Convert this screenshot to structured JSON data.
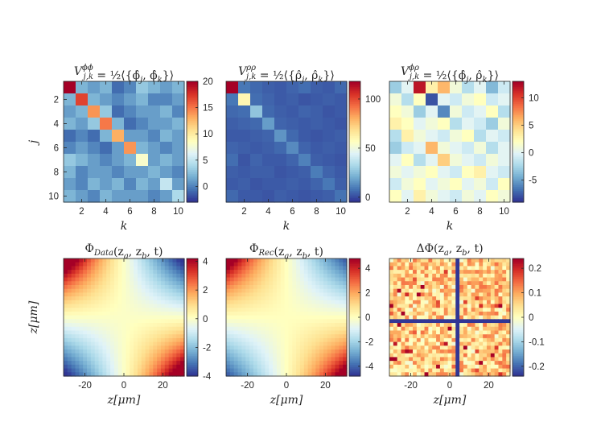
{
  "colormap": [
    "#313695",
    "#4575b4",
    "#74add1",
    "#abd9e9",
    "#e0f3f8",
    "#ffffbf",
    "#fee090",
    "#fdae61",
    "#f46d43",
    "#d73027",
    "#a50026"
  ],
  "chart_data": [
    {
      "type": "heatmap",
      "id": "v-phiphi",
      "title_main": "V",
      "title_sup": "ϕϕ",
      "title_sub": "j,k",
      "title_rest": " = ½⟨{ϕ̂",
      "title_rest_sub1": "j",
      "title_rest2": ", ϕ̂",
      "title_rest_sub2": "k",
      "title_rest3": "}⟩",
      "xlabel": "k",
      "ylabel": "j",
      "x_ticks": [
        2,
        4,
        6,
        8,
        10
      ],
      "y_ticks": [
        2,
        4,
        6,
        8,
        10
      ],
      "x_range": [
        0.5,
        10.5
      ],
      "y_range": [
        0.5,
        10.5
      ],
      "color_range": [
        -3,
        20
      ],
      "colorbar_ticks": [
        0,
        5,
        10,
        15,
        20
      ],
      "colorbar_tick_labels": [
        "0",
        "5",
        "10",
        "15",
        "20"
      ],
      "matrix": [
        [
          20,
          2,
          1,
          2,
          -1,
          0,
          3,
          2,
          1,
          2
        ],
        [
          2,
          17,
          2,
          1,
          0,
          1,
          2,
          0,
          0,
          1
        ],
        [
          1,
          2,
          14,
          3,
          -1,
          0,
          1,
          1,
          2,
          0
        ],
        [
          2,
          1,
          3,
          15,
          2,
          -1,
          0,
          1,
          1,
          2
        ],
        [
          -1,
          0,
          -1,
          2,
          13,
          1,
          1,
          0,
          2,
          1
        ],
        [
          0,
          1,
          0,
          -1,
          1,
          14,
          2,
          1,
          0,
          1
        ],
        [
          3,
          2,
          1,
          0,
          1,
          2,
          8,
          1,
          2,
          1
        ],
        [
          2,
          0,
          1,
          1,
          0,
          1,
          1,
          2,
          1,
          0
        ],
        [
          1,
          0,
          2,
          1,
          2,
          0,
          2,
          1,
          5,
          1
        ],
        [
          2,
          1,
          0,
          2,
          1,
          1,
          1,
          0,
          1,
          4
        ]
      ]
    },
    {
      "type": "heatmap",
      "id": "v-rhorho",
      "title_main": "V",
      "title_sup": "ρρ",
      "title_sub": "j,k",
      "title_rest": " = ½⟨{ρ̂",
      "title_rest_sub1": "j",
      "title_rest2": ", ρ̂",
      "title_rest_sub2": "k",
      "title_rest3": "}⟩",
      "xlabel": "k",
      "ylabel": "",
      "x_ticks": [
        2,
        4,
        6,
        8,
        10
      ],
      "y_ticks": [],
      "x_range": [
        0.5,
        10.5
      ],
      "y_range": [
        0.5,
        10.5
      ],
      "color_range": [
        -5,
        118
      ],
      "colorbar_ticks": [
        0,
        50,
        100
      ],
      "colorbar_tick_labels": [
        "0",
        "50",
        "100"
      ],
      "matrix": [
        [
          118,
          8,
          5,
          3,
          2,
          4,
          6,
          3,
          2,
          5
        ],
        [
          8,
          60,
          6,
          4,
          2,
          3,
          1,
          2,
          3,
          2
        ],
        [
          5,
          6,
          26,
          5,
          3,
          2,
          4,
          3,
          1,
          2
        ],
        [
          3,
          4,
          5,
          16,
          4,
          3,
          2,
          3,
          2,
          1
        ],
        [
          2,
          2,
          3,
          4,
          14,
          5,
          2,
          1,
          2,
          3
        ],
        [
          4,
          3,
          2,
          3,
          5,
          12,
          4,
          2,
          3,
          2
        ],
        [
          6,
          1,
          4,
          2,
          2,
          4,
          10,
          3,
          2,
          1
        ],
        [
          3,
          2,
          3,
          3,
          1,
          2,
          3,
          9,
          4,
          2
        ],
        [
          2,
          3,
          1,
          2,
          2,
          3,
          2,
          4,
          8,
          3
        ],
        [
          5,
          2,
          2,
          1,
          3,
          2,
          1,
          2,
          3,
          7
        ]
      ]
    },
    {
      "type": "heatmap",
      "id": "v-phirho",
      "title_main": "V",
      "title_sup": "ϕρ",
      "title_sub": "j,k",
      "title_rest": " = ½⟨{ϕ̂",
      "title_rest_sub1": "j",
      "title_rest2": ", ρ̂",
      "title_rest_sub2": "k",
      "title_rest3": "}⟩",
      "xlabel": "k",
      "ylabel": "",
      "x_ticks": [
        2,
        4,
        6,
        8,
        10
      ],
      "y_ticks": [],
      "x_range": [
        0.5,
        10.5
      ],
      "y_range": [
        0.5,
        10.5
      ],
      "color_range": [
        -9,
        13
      ],
      "colorbar_ticks": [
        -5,
        0,
        5,
        10
      ],
      "colorbar_tick_labels": [
        "-5",
        "0",
        "5",
        "10"
      ],
      "matrix": [
        [
          -3,
          0,
          12,
          3,
          6,
          1,
          -2,
          0,
          -4,
          -1
        ],
        [
          1,
          -2,
          2,
          -8,
          0,
          -1,
          1,
          2,
          -1,
          0
        ],
        [
          2,
          1,
          -3,
          0,
          -6,
          1,
          -1,
          0,
          2,
          -2
        ],
        [
          3,
          2,
          0,
          1,
          2,
          -2,
          0,
          -1,
          -3,
          1
        ],
        [
          -2,
          3,
          1,
          0,
          -1,
          1,
          2,
          -2,
          0,
          -1
        ],
        [
          -3,
          -1,
          0,
          6,
          1,
          0,
          -1,
          1,
          -2,
          0
        ],
        [
          0,
          2,
          -2,
          0,
          5,
          1,
          0,
          -1,
          1,
          0
        ],
        [
          1,
          0,
          1,
          2,
          0,
          -1,
          2,
          3,
          0,
          -1
        ],
        [
          -1,
          1,
          2,
          0,
          1,
          2,
          0,
          1,
          -1,
          2
        ],
        [
          2,
          0,
          3,
          1,
          0,
          -1,
          1,
          0,
          2,
          1
        ]
      ]
    },
    {
      "type": "heatmap",
      "id": "phi-data",
      "title_main": "Φ",
      "title_sub": "Data",
      "title_rest": "(z",
      "title_rest_sub1": "a",
      "title_rest2": ", z",
      "title_rest_sub2": "b",
      "title_rest3": ", t)",
      "xlabel": "z[μm]",
      "ylabel": "z[μm]",
      "x_ticks": [
        -20,
        0,
        20
      ],
      "y_ticks": [],
      "x_range": [
        -31,
        31
      ],
      "y_range": [
        -31,
        31
      ],
      "color_range": [
        -4,
        4.2
      ],
      "colorbar_ticks": [
        -4,
        -2,
        0,
        2,
        4
      ],
      "colorbar_tick_labels": [
        "-4",
        "-2",
        "0",
        "2",
        "4"
      ],
      "field": {
        "grid": 31,
        "amplitude": 3.6,
        "corner_boost": 1.9,
        "noise": 0
      }
    },
    {
      "type": "heatmap",
      "id": "phi-rec",
      "title_main": "Φ",
      "title_sub": "Rec",
      "title_rest": "(z",
      "title_rest_sub1": "a",
      "title_rest2": ", z",
      "title_rest_sub2": "b",
      "title_rest3": ", t)",
      "xlabel": "z[μm]",
      "ylabel": "",
      "x_ticks": [
        -20,
        0,
        20
      ],
      "y_ticks": [],
      "x_range": [
        -31,
        31
      ],
      "y_range": [
        -31,
        31
      ],
      "color_range": [
        -4.8,
        4.8
      ],
      "colorbar_ticks": [
        -4,
        -2,
        0,
        2,
        4
      ],
      "colorbar_tick_labels": [
        "-4",
        "-2",
        "0",
        "2",
        "4"
      ],
      "field": {
        "grid": 31,
        "amplitude": 3.6,
        "corner_boost": 1.9,
        "noise": 0
      }
    },
    {
      "type": "heatmap",
      "id": "delta-phi",
      "title_main": "ΔΦ",
      "title_sub": "",
      "title_rest": "(z",
      "title_rest_sub1": "a",
      "title_rest2": ", z",
      "title_rest_sub2": "b",
      "title_rest3": ", t)",
      "xlabel": "z[μm]",
      "ylabel": "",
      "x_ticks": [
        -20,
        0,
        20
      ],
      "y_ticks": [],
      "x_range": [
        -31,
        31
      ],
      "y_range": [
        -31,
        31
      ],
      "color_range": [
        -0.24,
        0.24
      ],
      "colorbar_ticks": [
        -0.2,
        -0.1,
        0,
        0.1,
        0.2
      ],
      "colorbar_tick_labels": [
        "-0.2",
        "-0.1",
        "0",
        "0.1",
        "0.2"
      ],
      "field": {
        "grid": 31,
        "amplitude": 0,
        "corner_boost": 0,
        "noise": 0.08,
        "offset": 0.06,
        "cross_value": -0.24,
        "cross_row": 16,
        "cross_col": 17
      }
    }
  ]
}
